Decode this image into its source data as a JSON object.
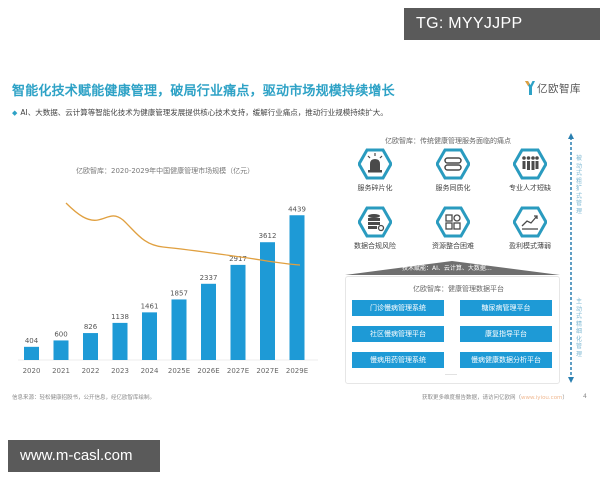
{
  "watermarks": {
    "top_right": "TG: MYYJJPP",
    "bottom_left": "www.m-casl.com"
  },
  "header": {
    "title": "智能化技术赋能健康管理，破局行业痛点，驱动市场规模持续增长",
    "brand": "亿欧智库",
    "subtitle": "AI、大数据、云计算等智能化技术为健康管理发展提供核心技术支持，缓解行业痛点，推动行业规模持续扩大。",
    "bullet_icon": "diamond-icon"
  },
  "colors": {
    "accent": "#2ea2c6",
    "bar": "#1e9ad6",
    "trend_line": "#e0a040",
    "icon_hex": "#2a9bbf",
    "roof": "#6f6f6f"
  },
  "chart_data": {
    "type": "bar",
    "title": "亿欧智库：2020-2029年中国健康管理市场规模（亿元）",
    "categories": [
      "2020",
      "2021",
      "2022",
      "2023",
      "2024",
      "2025E",
      "2026E",
      "2027E",
      "2027E",
      "2029E"
    ],
    "values": [
      404,
      600,
      826,
      1138,
      1461,
      1857,
      2337,
      2917,
      3612,
      4439
    ],
    "xlabel": "",
    "ylabel": "亿元",
    "ylim": [
      0,
      4600
    ],
    "grid": false,
    "legend": "none",
    "overlay_line": {
      "type": "line",
      "description": "decorative orange trend line, unlabeled",
      "points_relative": [
        [
          0,
          0.0
        ],
        [
          1,
          0.38
        ],
        [
          2,
          0.35
        ],
        [
          3,
          0.7
        ],
        [
          4,
          0.78
        ],
        [
          5,
          0.85
        ],
        [
          6,
          0.91
        ],
        [
          7,
          0.97
        ],
        [
          8,
          1.0
        ]
      ]
    }
  },
  "chart": {
    "title": "亿欧智库：2020-2029年中国健康管理市场规模（亿元）",
    "source": "信息来源：轻松健康招股书，公开信息，经亿欧智库绘制。",
    "labels": [
      "404",
      "600",
      "826",
      "1138",
      "1461",
      "1857",
      "2337",
      "2917",
      "3612",
      "4439"
    ],
    "categories": [
      "2020",
      "2021",
      "2022",
      "2023",
      "2024",
      "2025E",
      "2026E",
      "2027E",
      "2027E",
      "2029E"
    ]
  },
  "pain_points": {
    "title": "亿欧智库：传统健康管理服务面临的痛点",
    "items": [
      {
        "label": "服务碎片化",
        "icon": "alarm-light-icon"
      },
      {
        "label": "服务同质化",
        "icon": "stack-bars-icon"
      },
      {
        "label": "专业人才短缺",
        "icon": "people-group-icon"
      },
      {
        "label": "数据合规风险",
        "icon": "database-gear-icon"
      },
      {
        "label": "资源整合困难",
        "icon": "grid-apps-icon"
      },
      {
        "label": "盈利模式薄弱",
        "icon": "trend-up-icon"
      }
    ]
  },
  "platform": {
    "roof_text": "技术赋能：AI、云计算、大数据…",
    "title": "亿欧智库：健康管理数据平台",
    "systems": [
      "门诊慢病管理系统",
      "糖尿病管理平台",
      "社区慢病管理平台",
      "康复指导平台",
      "慢病用药管理系统",
      "慢病健康数据分析平台"
    ],
    "ellipsis": "……"
  },
  "side_axis": {
    "top_label": "被动式粗犷式管理",
    "bottom_label": "主动式精细化管理"
  },
  "footer": {
    "note": "获取更多维度报告数据，请访问亿欧网（",
    "url": "www.iyiou.com",
    "note_end": "）",
    "page": "4"
  }
}
